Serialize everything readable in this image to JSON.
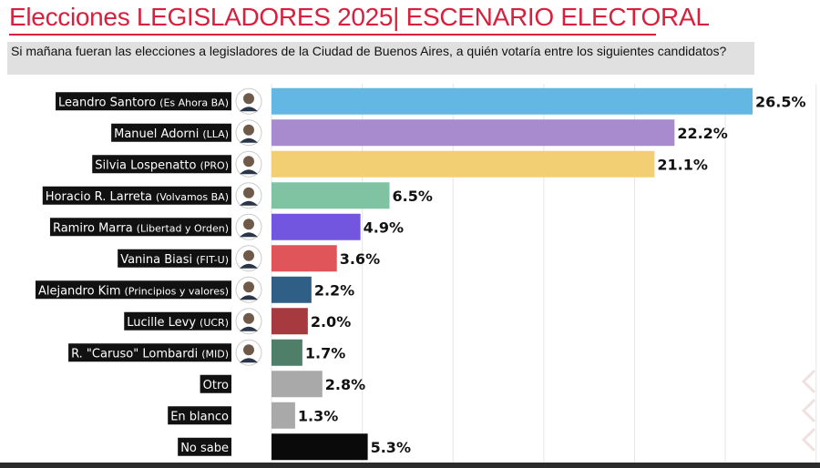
{
  "header": {
    "title": "Elecciones LEGISLADORES 2025| ESCENARIO ELECTORAL",
    "subtitle": "Si mañana fueran las elecciones a legisladores de la Ciudad de Buenos Aires, a quién votaría entre los siguientes candidatos?"
  },
  "chart_data": {
    "type": "bar",
    "orientation": "horizontal",
    "title": "Elecciones LEGISLADORES 2025| ESCENARIO ELECTORAL",
    "subtitle": "Si mañana fueran las elecciones a legisladores de la Ciudad de Buenos Aires, a quién votaría entre los siguientes candidatos?",
    "xlim": [
      0,
      30
    ],
    "grid": true,
    "value_suffix": "%",
    "categories": [
      {
        "name": "Leandro Santoro",
        "party": "(Es Ahora BA)",
        "avatar": true
      },
      {
        "name": "Manuel Adorni",
        "party": "(LLA)",
        "avatar": true
      },
      {
        "name": "Silvia Lospenatto",
        "party": "(PRO)",
        "avatar": true
      },
      {
        "name": "Horacio R. Larreta",
        "party": "(Volvamos BA)",
        "avatar": true
      },
      {
        "name": "Ramiro Marra",
        "party": "(Libertad y Orden)",
        "avatar": true
      },
      {
        "name": "Vanina Biasi",
        "party": "(FIT-U)",
        "avatar": true
      },
      {
        "name": "Alejandro Kim",
        "party": "(Principios y valores)",
        "avatar": true
      },
      {
        "name": "Lucille Levy",
        "party": "(UCR)",
        "avatar": true
      },
      {
        "name": "R. \"Caruso\" Lombardi",
        "party": "(MID)",
        "avatar": true
      },
      {
        "name": "Otro",
        "party": "",
        "avatar": false
      },
      {
        "name": "En blanco",
        "party": "",
        "avatar": false
      },
      {
        "name": "No sabe",
        "party": "",
        "avatar": false
      }
    ],
    "values": [
      26.5,
      22.2,
      21.1,
      6.5,
      4.9,
      3.6,
      2.2,
      2.0,
      1.7,
      2.8,
      1.3,
      5.3
    ],
    "value_labels": [
      "26.5%",
      "22.2%",
      "21.1%",
      "6.5%",
      "4.9%",
      "3.6%",
      "2.2%",
      "2.0%",
      "1.7%",
      "2.8%",
      "1.3%",
      "5.3%"
    ],
    "colors": [
      "#63b8e3",
      "#a78bce",
      "#f2cf73",
      "#7fc3a3",
      "#7356e0",
      "#e0555a",
      "#2f5f86",
      "#a63a3e",
      "#4f7f68",
      "#a9a9a9",
      "#a9a9a9",
      "#0a0a0a"
    ]
  }
}
